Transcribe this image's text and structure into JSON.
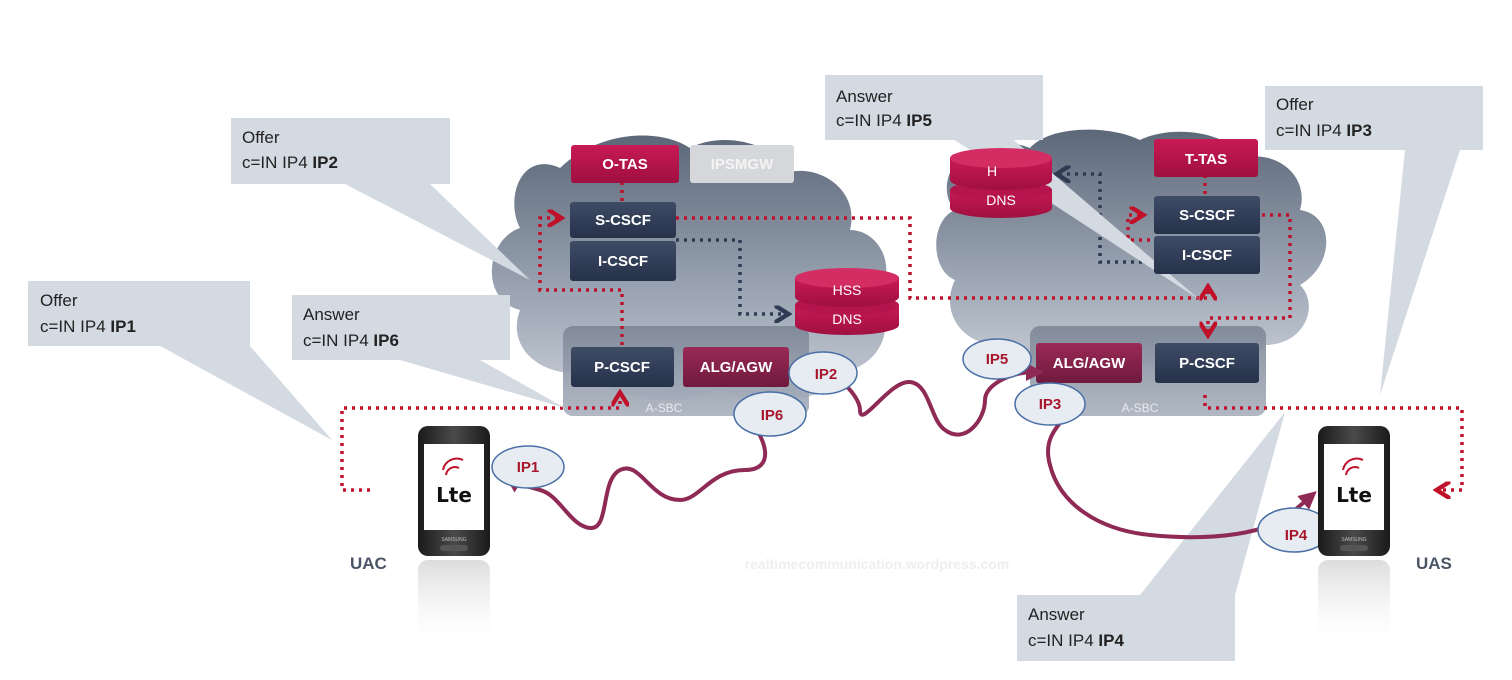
{
  "nodes": {
    "o_tas": "O-TAS",
    "ipsmgw": "IPSMGW",
    "s_cscf_left": "S-CSCF",
    "i_cscf_left": "I-CSCF",
    "p_cscf_left": "P-CSCF",
    "alg_left": "ALG/AGW",
    "hss": "HSS",
    "dns": "DNS",
    "hss_right_partial": "H",
    "dns_right": "DNS",
    "t_tas": "T-TAS",
    "s_cscf_right": "S-CSCF",
    "i_cscf_right": "I-CSCF",
    "alg_right": "ALG/AGW",
    "p_cscf_right": "P-CSCF",
    "sbc_left": "A-SBC",
    "sbc_right": "A-SBC"
  },
  "ips": {
    "ip1": "IP1",
    "ip2": "IP2",
    "ip3": "IP3",
    "ip4": "IP4",
    "ip5": "IP5",
    "ip6": "IP6"
  },
  "callouts": {
    "offer_ip1": {
      "line1": "Offer",
      "prefix": "c=IN IP4 ",
      "ip": "IP1"
    },
    "offer_ip2": {
      "line1": "Offer",
      "prefix": "c=IN IP4 ",
      "ip": "IP2"
    },
    "answer_ip6": {
      "line1": "Answer",
      "prefix": "c=IN IP4 ",
      "ip": "IP6"
    },
    "answer_ip5": {
      "line1": "Answer",
      "prefix": "c=IN IP4 ",
      "ip": "IP5"
    },
    "offer_ip3": {
      "line1": "Offer",
      "prefix": "c=IN IP4 ",
      "ip": "IP3"
    },
    "answer_ip4": {
      "line1": "Answer",
      "prefix": "c=IN IP4 ",
      "ip": "IP4"
    }
  },
  "endpoints": {
    "uac": "UAC",
    "uas": "UAS",
    "phone_logo": "Lte",
    "phone_brand": "SAMSUNG"
  },
  "watermark": "realtimecommunication.wordpress.com",
  "colors": {
    "crimson": "#b0124a",
    "navy": "#2f3b52",
    "signal": "#c0102a",
    "media": "#8e2a55",
    "callout": "#d4dae2"
  }
}
